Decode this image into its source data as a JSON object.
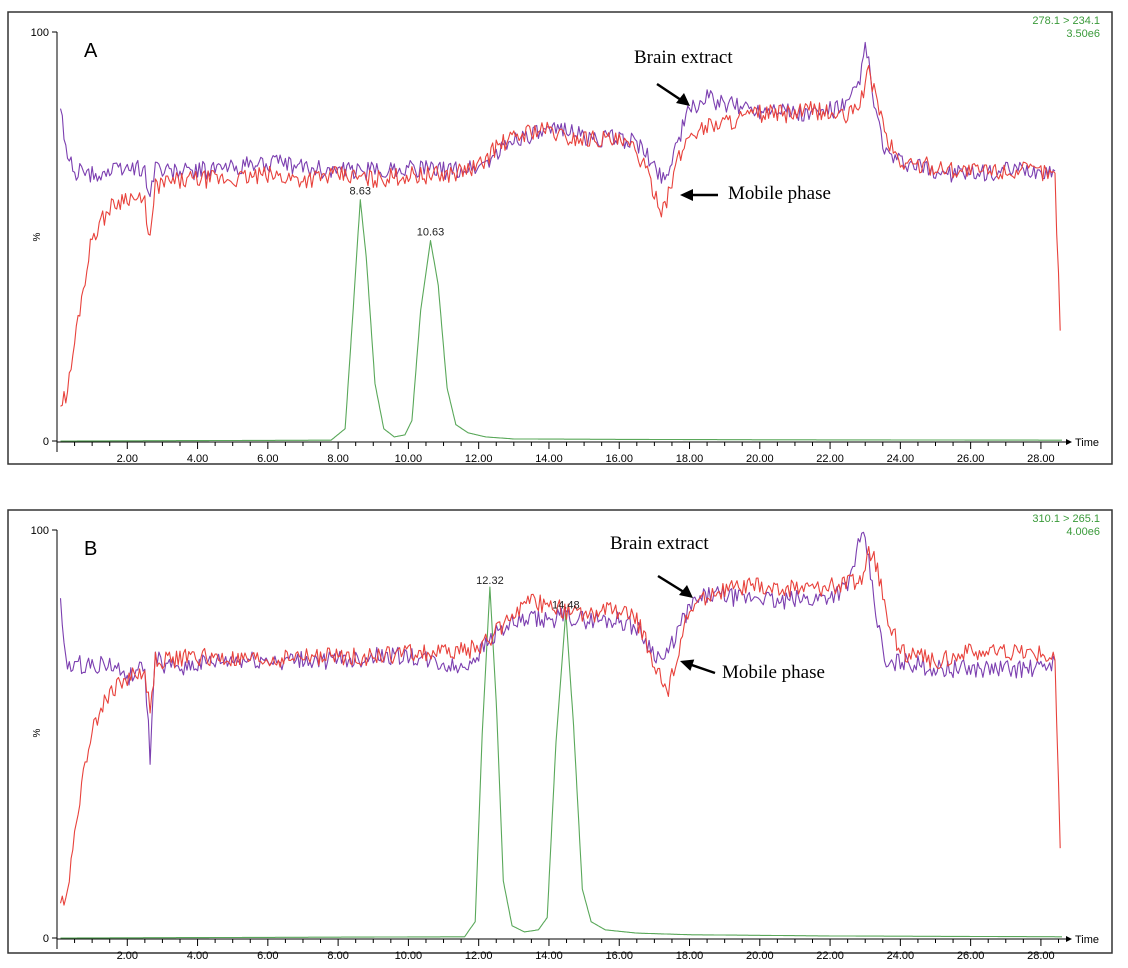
{
  "chart_data": [
    {
      "type": "line",
      "panel_label": "A",
      "transition": "278.1 > 234.1",
      "intensity": "3.50e6",
      "xlabel": "Time",
      "ylabel": "%",
      "xlim": [
        0.0,
        28.6
      ],
      "ylim": [
        0,
        100
      ],
      "x_ticks": [
        "2.00",
        "4.00",
        "6.00",
        "8.00",
        "10.00",
        "12.00",
        "14.00",
        "16.00",
        "18.00",
        "20.00",
        "22.00",
        "24.00",
        "26.00",
        "28.00"
      ],
      "y_ticks": [
        "100",
        "0"
      ],
      "peaks": [
        {
          "time": 8.63,
          "label": "8.63",
          "height": 59
        },
        {
          "time": 10.63,
          "label": "10.63",
          "height": 49
        }
      ],
      "annotations": [
        "Brain extract",
        "Mobile phase"
      ],
      "series": [
        {
          "color": "#5aa85a",
          "x": [
            0.1,
            7.8,
            8.2,
            8.45,
            8.63,
            8.8,
            9.05,
            9.3,
            9.6,
            9.9,
            10.1,
            10.35,
            10.63,
            10.85,
            11.1,
            11.35,
            11.7,
            12.2,
            13,
            16,
            20,
            28.6
          ],
          "y": [
            0,
            0.2,
            3,
            35,
            59,
            45,
            14,
            3,
            1,
            1.5,
            5,
            32,
            49,
            38,
            13,
            4,
            2,
            1,
            0.5,
            0.4,
            0.3,
            0.2
          ]
        },
        {
          "color": "#7c3fb0",
          "x": [
            0.1,
            0.25,
            0.5,
            1,
            1.5,
            2,
            2.5,
            2.65,
            2.8,
            3,
            4,
            5,
            6,
            7,
            8,
            9,
            10,
            11,
            12,
            12.5,
            13,
            13.5,
            14,
            14.5,
            15,
            15.5,
            16,
            16.5,
            17,
            17.3,
            17.6,
            18,
            18.5,
            19,
            19.5,
            20,
            20.5,
            21,
            21.5,
            22,
            22.5,
            22.8,
            23,
            23.1,
            23.3,
            23.6,
            24,
            25,
            26,
            27,
            28,
            28.4
          ],
          "y": [
            81,
            71,
            66,
            65,
            66,
            67,
            66,
            60,
            68,
            66,
            66,
            67,
            68,
            67,
            66,
            66,
            67,
            66,
            67,
            70,
            74,
            75,
            75,
            77,
            74,
            74,
            74,
            73,
            67,
            64,
            72,
            81,
            84,
            82,
            82,
            81,
            82,
            80,
            80,
            81,
            82,
            87,
            96,
            92,
            80,
            70,
            68,
            66,
            65,
            66,
            66,
            66
          ]
        },
        {
          "color": "#e8423c",
          "x": [
            0.1,
            0.3,
            0.6,
            1,
            1.5,
            2,
            2.5,
            2.65,
            2.8,
            3,
            4,
            5,
            6,
            7,
            8,
            9,
            10,
            11,
            12,
            12.5,
            13,
            13.5,
            14,
            14.5,
            15,
            15.5,
            16,
            16.5,
            16.8,
            17,
            17.2,
            17.4,
            17.6,
            18,
            18.5,
            19,
            19.5,
            20,
            20.5,
            21,
            21.5,
            22,
            22.5,
            22.9,
            23.1,
            23.3,
            23.6,
            24,
            25,
            26,
            27,
            28,
            28.4,
            28.55
          ],
          "y": [
            9,
            12,
            30,
            50,
            57,
            60,
            58,
            49,
            62,
            63,
            64,
            64,
            65,
            64,
            65,
            64,
            65,
            65,
            67,
            72,
            74,
            76,
            76,
            74,
            74,
            74,
            73,
            71,
            65,
            61,
            57,
            60,
            67,
            75,
            77,
            78,
            79,
            80,
            80,
            80,
            81,
            80,
            79,
            84,
            90,
            85,
            74,
            68,
            67,
            66,
            66,
            66,
            65,
            27
          ]
        }
      ]
    },
    {
      "type": "line",
      "panel_label": "B",
      "transition": "310.1 > 265.1",
      "intensity": "4.00e6",
      "xlabel": "Time",
      "ylabel": "%",
      "xlim": [
        0.0,
        28.6
      ],
      "ylim": [
        0,
        100
      ],
      "x_ticks": [
        "2.00",
        "4.00",
        "6.00",
        "8.00",
        "10.00",
        "12.00",
        "14.00",
        "16.00",
        "18.00",
        "20.00",
        "22.00",
        "24.00",
        "26.00",
        "28.00"
      ],
      "y_ticks": [
        "100",
        "0"
      ],
      "peaks": [
        {
          "time": 12.32,
          "label": "12.32",
          "height": 86
        },
        {
          "time": 14.48,
          "label": "14.48",
          "height": 80
        }
      ],
      "annotations": [
        "Brain extract",
        "Mobile phase"
      ],
      "series": [
        {
          "color": "#5aa85a",
          "x": [
            0.1,
            11.6,
            11.9,
            12.1,
            12.32,
            12.5,
            12.7,
            12.95,
            13.3,
            13.7,
            13.95,
            14.2,
            14.48,
            14.7,
            14.95,
            15.2,
            15.6,
            16.5,
            18,
            22,
            28.6
          ],
          "y": [
            0,
            0.3,
            4,
            50,
            86,
            58,
            14,
            3,
            1.5,
            2,
            5,
            48,
            80,
            52,
            12,
            4,
            2,
            1.2,
            0.8,
            0.5,
            0.3
          ]
        },
        {
          "color": "#7c3fb0",
          "x": [
            0.1,
            0.25,
            0.5,
            1,
            1.5,
            2,
            2.5,
            2.65,
            2.8,
            3,
            4,
            5,
            6,
            7,
            8,
            9,
            10,
            11,
            11.5,
            12,
            12.5,
            13,
            13.5,
            14,
            14.5,
            15,
            15.5,
            16,
            16.5,
            17,
            17.3,
            17.6,
            18,
            18.5,
            19,
            19.5,
            20,
            20.5,
            21,
            21.5,
            22,
            22.5,
            22.8,
            23,
            23.1,
            23.3,
            23.6,
            24,
            25,
            26,
            27,
            28,
            28.4
          ],
          "y": [
            82,
            67,
            67,
            67,
            67,
            64,
            66,
            44,
            70,
            66,
            67,
            68,
            68,
            68,
            68,
            69,
            69,
            67,
            66,
            70,
            75,
            77,
            78,
            78,
            79,
            78,
            78,
            78,
            76,
            70,
            68,
            74,
            81,
            84,
            84,
            83,
            84,
            82,
            83,
            83,
            84,
            86,
            96,
            98,
            92,
            80,
            66,
            68,
            66,
            66,
            66,
            66,
            68
          ]
        },
        {
          "color": "#e8423c",
          "x": [
            0.1,
            0.3,
            0.6,
            1,
            1.5,
            2,
            2.5,
            2.65,
            2.8,
            3,
            4,
            5,
            6,
            7,
            8,
            9,
            10,
            11,
            12,
            12.5,
            13,
            13.5,
            14,
            14.5,
            15,
            15.5,
            16,
            16.5,
            16.8,
            17,
            17.2,
            17.4,
            17.6,
            18,
            18.5,
            19,
            19.5,
            20,
            20.5,
            21,
            21.5,
            22,
            22.5,
            22.9,
            23.1,
            23.3,
            23.6,
            24,
            25,
            26,
            27,
            28,
            28.4,
            28.55
          ],
          "y": [
            8,
            12,
            32,
            52,
            60,
            64,
            65,
            55,
            68,
            68,
            69,
            68,
            68,
            69,
            69,
            69,
            70,
            70,
            71,
            75,
            80,
            82,
            82,
            80,
            79,
            80,
            80,
            78,
            72,
            67,
            63,
            60,
            68,
            80,
            84,
            85,
            86,
            86,
            85,
            86,
            86,
            86,
            87,
            88,
            94,
            92,
            80,
            70,
            68,
            70,
            70,
            70,
            68,
            22
          ]
        }
      ]
    }
  ]
}
